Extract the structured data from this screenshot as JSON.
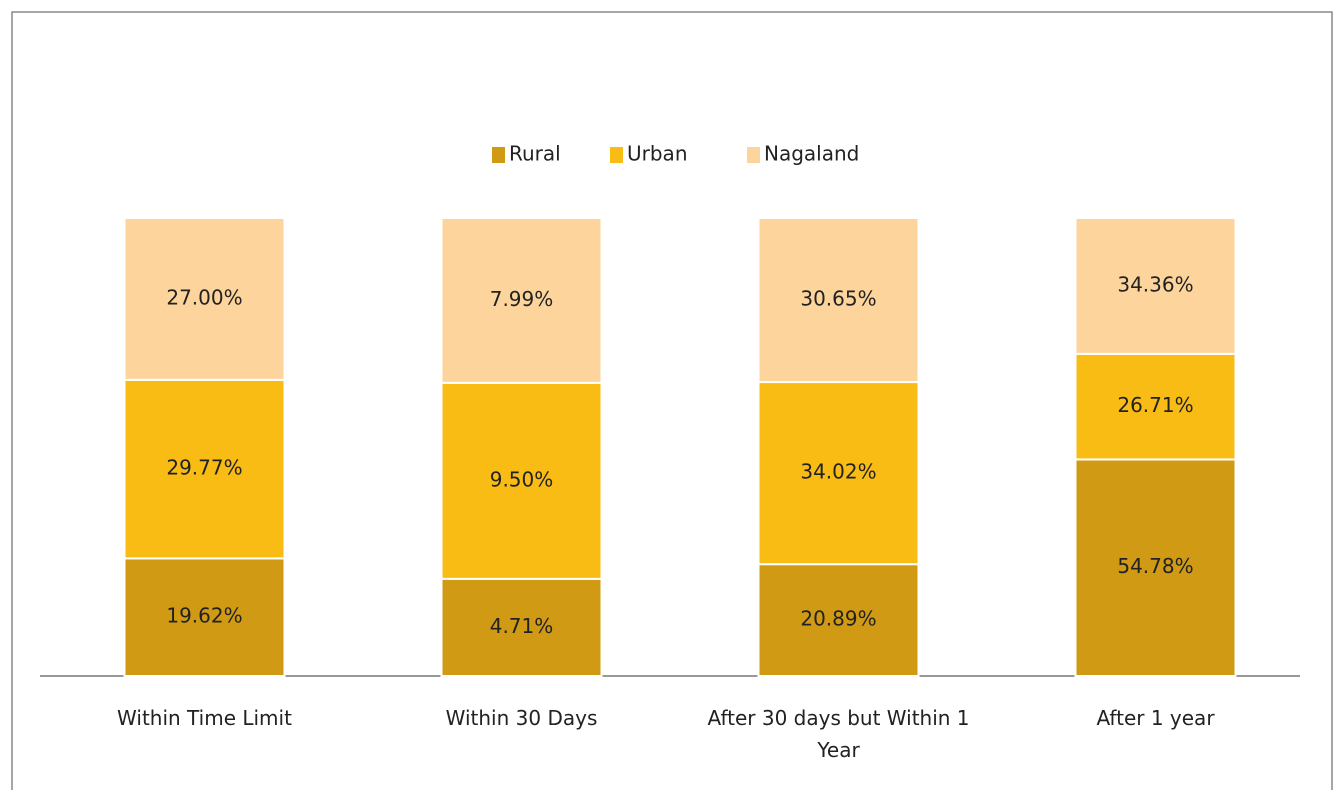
{
  "chart_data": {
    "type": "bar",
    "stacking": "percent",
    "categories": [
      "Within Time Limit",
      "Within 30 Days",
      "After 30 days but Within 1 Year",
      "After 1 year"
    ],
    "series": [
      {
        "name": "Rural",
        "color": "#d09a14",
        "values": [
          19.62,
          4.71,
          20.89,
          54.78
        ],
        "value_labels": [
          "19.62%",
          "4.71%",
          "20.89%",
          "54.78%"
        ]
      },
      {
        "name": "Urban",
        "color": "#f9bc15",
        "values": [
          29.77,
          9.5,
          34.02,
          26.71
        ],
        "value_labels": [
          "29.77%",
          "9.50%",
          "34.02%",
          "26.71%"
        ]
      },
      {
        "name": "Nagaland",
        "color": "#fdd49b",
        "values": [
          27.0,
          7.99,
          30.65,
          34.36
        ],
        "value_labels": [
          "27.00%",
          "7.99%",
          "30.65%",
          "34.36%"
        ]
      }
    ],
    "legend": "top"
  }
}
